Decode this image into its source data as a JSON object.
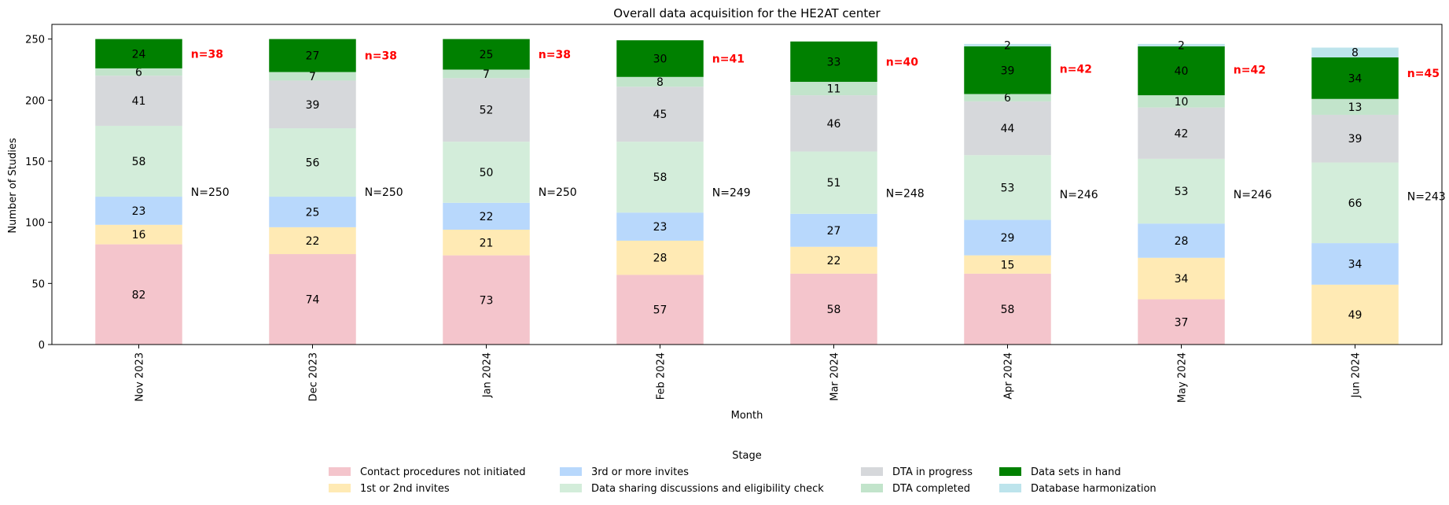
{
  "chart_data": {
    "type": "bar",
    "stacked": true,
    "title": "Overall data acquisition for the HE2AT center",
    "xlabel": "Month",
    "ylabel": "Number of Studies",
    "ylim": [
      0,
      262
    ],
    "yticks": [
      0,
      50,
      100,
      150,
      200,
      250
    ],
    "categories": [
      "Nov 2023",
      "Dec 2023",
      "Jan 2024",
      "Feb 2024",
      "Mar 2024",
      "Apr 2024",
      "May 2024",
      "Jun 2024"
    ],
    "series": [
      {
        "name": "Contact procedures not initiated",
        "color": "#f4c5cc",
        "values": [
          82,
          74,
          73,
          57,
          58,
          58,
          37,
          0
        ]
      },
      {
        "name": "1st or 2nd invites",
        "color": "#ffeab4",
        "values": [
          16,
          22,
          21,
          28,
          22,
          15,
          34,
          49
        ]
      },
      {
        "name": "3rd or more invites",
        "color": "#b8d8fc",
        "values": [
          23,
          25,
          22,
          23,
          27,
          29,
          28,
          34
        ]
      },
      {
        "name": "Data sharing discussions and eligibility check",
        "color": "#d3edda",
        "values": [
          58,
          56,
          50,
          58,
          51,
          53,
          53,
          66
        ]
      },
      {
        "name": "DTA in progress",
        "color": "#d6d8db",
        "values": [
          41,
          39,
          52,
          45,
          46,
          44,
          42,
          39
        ]
      },
      {
        "name": "DTA completed",
        "color": "#c2e4cb",
        "values": [
          6,
          7,
          7,
          8,
          11,
          6,
          10,
          13
        ]
      },
      {
        "name": "Data sets in hand",
        "color": "#008000",
        "values": [
          24,
          27,
          25,
          30,
          33,
          39,
          40,
          34
        ]
      },
      {
        "name": "Database harmonization",
        "color": "#bde4ec",
        "values": [
          0,
          0,
          0,
          0,
          0,
          2,
          2,
          8
        ]
      }
    ],
    "totals_labels": [
      "N=250",
      "N=250",
      "N=250",
      "N=249",
      "N=248",
      "N=246",
      "N=246",
      "N=243"
    ],
    "in_hand_labels": [
      "n=38",
      "n=38",
      "n=38",
      "n=41",
      "n=40",
      "n=42",
      "n=42",
      "n=45"
    ],
    "highlight_color": "#ff0000",
    "legend": {
      "title": "Stage",
      "placement": "bottom-center",
      "columns": 4
    },
    "grid": false
  }
}
